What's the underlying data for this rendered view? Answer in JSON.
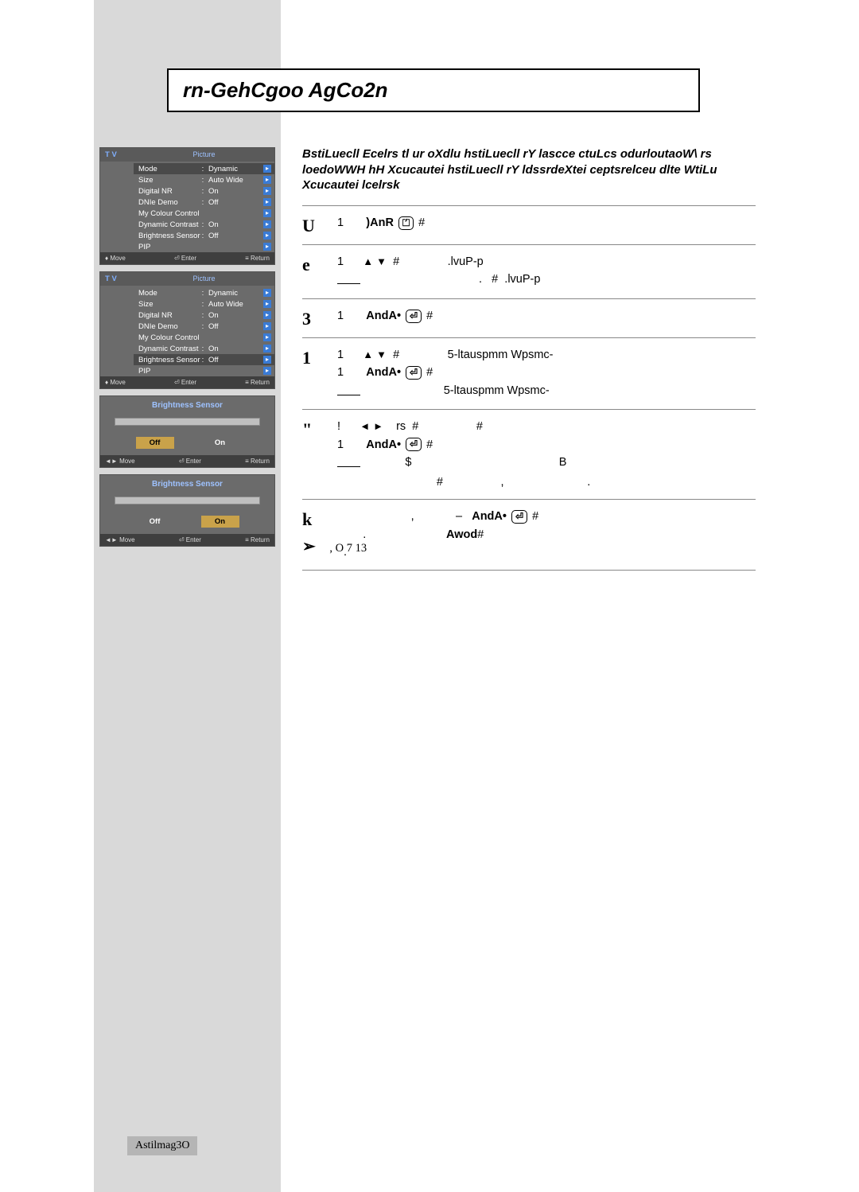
{
  "title": "rn-GehCgoo AgCo2n",
  "intro": "BstiLuecll Ecelrs tl ur oXdlu hstiLuecll rY lascce ctuLcs odurloutaoW\\ rs loedoWWH hH Xcucautei hstiLuecll rY ldssrdeXtei ceptsrelceu dlte WtiLu Xcucautei lcelrsk",
  "osd": {
    "tv_label": "T V",
    "header": "Picture",
    "rows": [
      {
        "k": "Mode",
        "v": "Dynamic"
      },
      {
        "k": "Size",
        "v": "Auto Wide"
      },
      {
        "k": "Digital NR",
        "v": "On"
      },
      {
        "k": "DNIe Demo",
        "v": "Off"
      },
      {
        "k": "My Colour Control",
        "v": ""
      },
      {
        "k": "Dynamic Contrast",
        "v": "On"
      },
      {
        "k": "Brightness Sensor",
        "v": "Off"
      },
      {
        "k": "PIP",
        "v": ""
      }
    ],
    "nav_move": "Move",
    "nav_enter": "Enter",
    "nav_return": "Return",
    "sensor_title": "Brightness Sensor",
    "off": "Off",
    "on": "On",
    "nav2_move": "Move",
    "nav2_enter": "Enter",
    "nav2_return": "Return"
  },
  "steps": [
    {
      "n": "U",
      "lines": [
        {
          "pre": "1",
          "txt1": " ",
          "btn": ")AnR",
          "ibox": "⏍",
          "txt2": " #"
        }
      ]
    },
    {
      "n": "e",
      "lines": [
        {
          "pre": "1",
          "txt1": " ",
          "tri1": "▲",
          "tri2": "▼",
          "txt2": " #               .lvuP-p"
        },
        {
          "pre": "",
          "txt1": "                                     .   #  .lvuP-p",
          "result": true
        }
      ]
    },
    {
      "n": "3",
      "lines": [
        {
          "pre": "1",
          "txt1": " ",
          "btn": "AndA•",
          "enter": true,
          "txt2": " #"
        }
      ]
    },
    {
      "n": "1",
      "lines": [
        {
          "pre": "1",
          "txt1": " ",
          "tri1": "▲",
          "tri2": "▼",
          "txt2": " #               5-ltauspmm Wpsmc-"
        },
        {
          "pre": "1",
          "txt1": " ",
          "btn": "AndA•",
          "enter": true,
          "txt2": " #"
        },
        {
          "pre": "",
          "txt1": "                          5-ltauspmm Wpsmc-",
          "result": true
        }
      ]
    },
    {
      "n": "\"",
      "lines": [
        {
          "pre": "!",
          "txt1": "    rs  #                 ",
          "tri1": "◄",
          "tri2": "►",
          "txt2": " #"
        },
        {
          "pre": "1",
          "txt1": " ",
          "btn": "AndA•",
          "enter": true,
          "txt2": " #"
        },
        {
          "pre": "",
          "txt1": "              $                                              B",
          "result": true
        },
        {
          "pre": "",
          "txt1": "                               #                  ,                          ."
        }
      ]
    },
    {
      "n": "k",
      "lines": [
        {
          "pre": "",
          "txt1": "                       ,             –   ",
          "btn": "AndA•",
          "enter": true,
          "txt2": " #"
        },
        {
          "pre": "",
          "txt1": "        .                         ",
          "btn": "Awod",
          "txt2": "#"
        },
        {
          "pre": "",
          "txt1": "  ."
        }
      ]
    }
  ],
  "footnote": "          ,                         O        7                                    13",
  "page_number": "Astilmag3O"
}
